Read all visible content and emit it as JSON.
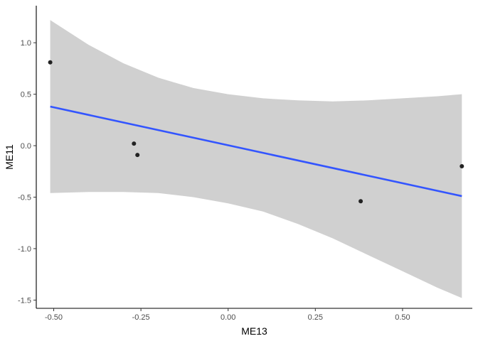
{
  "chart_data": {
    "type": "scatter",
    "title": "",
    "xlabel": "ME13",
    "ylabel": "ME11",
    "xlim": [
      -0.55,
      0.7
    ],
    "ylim": [
      -1.58,
      1.36
    ],
    "x_ticks": [
      -0.5,
      -0.25,
      0.0,
      0.25,
      0.5
    ],
    "x_tick_labels": [
      "-0.50",
      "-0.25",
      "0.00",
      "0.25",
      "0.50"
    ],
    "y_ticks": [
      -1.5,
      -1.0,
      -0.5,
      0.0,
      0.5,
      1.0
    ],
    "y_tick_labels": [
      "-1.5",
      "-1.0",
      "-0.5",
      "0.0",
      "0.5",
      "1.0"
    ],
    "grid": false,
    "points": [
      {
        "x": -0.51,
        "y": 0.81
      },
      {
        "x": -0.27,
        "y": 0.02
      },
      {
        "x": -0.26,
        "y": -0.09
      },
      {
        "x": 0.38,
        "y": -0.54
      },
      {
        "x": 0.67,
        "y": -0.2
      }
    ],
    "fit_line": {
      "method": "linear",
      "start": {
        "x": -0.51,
        "y": 0.38
      },
      "end": {
        "x": 0.67,
        "y": -0.49
      }
    },
    "confidence_band": {
      "x": [
        -0.51,
        -0.4,
        -0.3,
        -0.2,
        -0.1,
        0.0,
        0.1,
        0.2,
        0.3,
        0.4,
        0.5,
        0.6,
        0.67
      ],
      "upper": [
        1.22,
        0.98,
        0.8,
        0.66,
        0.56,
        0.5,
        0.46,
        0.44,
        0.43,
        0.44,
        0.46,
        0.48,
        0.5
      ],
      "lower": [
        -0.46,
        -0.45,
        -0.45,
        -0.46,
        -0.5,
        -0.56,
        -0.64,
        -0.76,
        -0.9,
        -1.06,
        -1.22,
        -1.38,
        -1.48
      ]
    },
    "colors": {
      "line": "#3355ff",
      "band": "#d0d0d0",
      "points": "#222222",
      "axis": "#000000",
      "tick_label": "#4d4d4d"
    }
  }
}
